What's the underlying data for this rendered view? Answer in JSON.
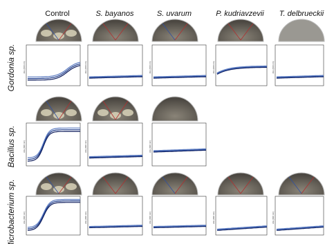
{
  "header": {
    "columns": [
      "Control",
      "S. bayanos",
      "S. uvarum",
      "P. kudriavzevii",
      "T. delbrueckii"
    ]
  },
  "rows": [
    "Gordonia sp.",
    "Bacillus sp.",
    "Microbacterium sp."
  ],
  "y_label": "Abs (600 nm)"
}
